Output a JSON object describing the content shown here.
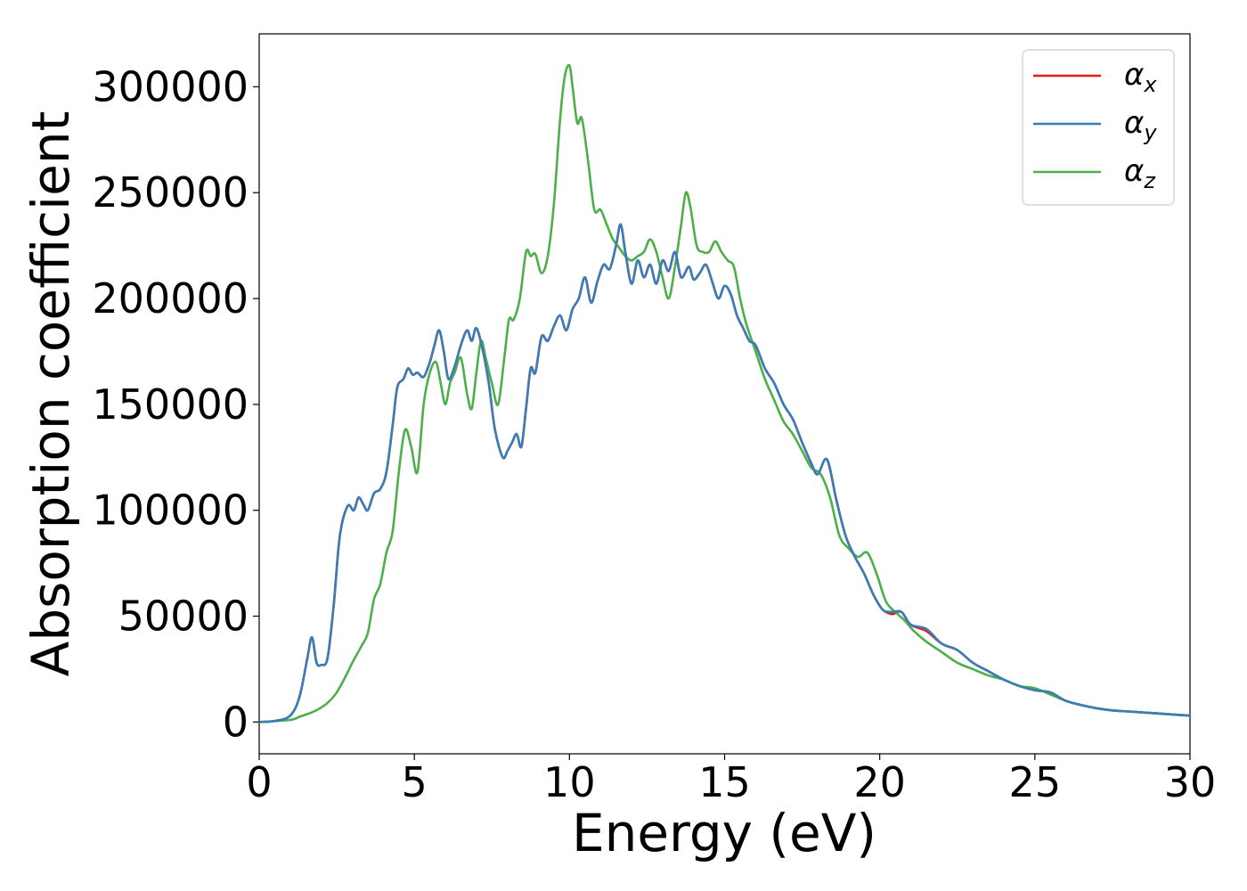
{
  "chart_data": {
    "type": "line",
    "title": "",
    "xlabel": "Energy (eV)",
    "ylabel": "Absorption coefficient",
    "xlim": [
      0,
      30
    ],
    "ylim": [
      -15000,
      325000
    ],
    "xticks": [
      0,
      5,
      10,
      15,
      20,
      25,
      30
    ],
    "yticks": [
      0,
      50000,
      100000,
      150000,
      200000,
      250000,
      300000
    ],
    "grid": false,
    "legend_position": "top-right",
    "series": [
      {
        "name": "αx",
        "base": "α",
        "sub": "x",
        "color": "#e41a1c",
        "x": [
          0,
          0.5,
          1.0,
          1.3,
          1.55,
          1.7,
          1.85,
          2.0,
          2.2,
          2.4,
          2.6,
          2.85,
          3.05,
          3.2,
          3.35,
          3.5,
          3.7,
          3.9,
          4.1,
          4.3,
          4.45,
          4.65,
          4.8,
          4.95,
          5.1,
          5.3,
          5.5,
          5.65,
          5.8,
          5.95,
          6.1,
          6.3,
          6.5,
          6.7,
          6.85,
          7.0,
          7.2,
          7.4,
          7.6,
          7.85,
          8.0,
          8.15,
          8.3,
          8.45,
          8.6,
          8.75,
          8.9,
          9.1,
          9.3,
          9.5,
          9.7,
          9.9,
          10.1,
          10.3,
          10.5,
          10.7,
          10.9,
          11.1,
          11.3,
          11.5,
          11.65,
          11.8,
          12.0,
          12.2,
          12.4,
          12.6,
          12.8,
          13.0,
          13.2,
          13.4,
          13.6,
          13.85,
          14.0,
          14.2,
          14.4,
          14.6,
          14.8,
          15.0,
          15.2,
          15.4,
          15.6,
          15.8,
          16.0,
          16.3,
          16.6,
          16.9,
          17.2,
          17.5,
          17.8,
          18.0,
          18.3,
          18.6,
          18.9,
          19.2,
          19.5,
          19.8,
          20.1,
          20.4,
          20.7,
          21.0,
          21.5,
          22.0,
          22.5,
          23.0,
          23.5,
          24.0,
          24.5,
          25.0,
          25.5,
          26.0,
          26.5,
          27.0,
          27.5,
          28.0,
          28.5,
          29.0,
          29.5,
          30.0
        ],
        "y": [
          0,
          500,
          3000,
          12000,
          30000,
          40000,
          28000,
          27000,
          30000,
          55000,
          88000,
          102000,
          100000,
          106000,
          103000,
          100000,
          108000,
          110000,
          118000,
          140000,
          158000,
          162000,
          167000,
          164000,
          165000,
          163000,
          170000,
          178000,
          185000,
          175000,
          162000,
          168000,
          178000,
          185000,
          180000,
          186000,
          176000,
          160000,
          138000,
          125000,
          128000,
          132000,
          136000,
          130000,
          148000,
          167000,
          165000,
          182000,
          180000,
          187000,
          192000,
          185000,
          195000,
          200000,
          210000,
          198000,
          208000,
          216000,
          214000,
          225000,
          235000,
          222000,
          207000,
          218000,
          210000,
          216000,
          207000,
          218000,
          213000,
          222000,
          210000,
          215000,
          209000,
          212000,
          216000,
          208000,
          200000,
          206000,
          202000,
          192000,
          186000,
          180000,
          178000,
          167000,
          160000,
          150000,
          143000,
          132000,
          122000,
          117000,
          124000,
          105000,
          88000,
          78000,
          70000,
          60000,
          53000,
          51000,
          52000,
          46000,
          43000,
          37000,
          34000,
          28000,
          24000,
          20000,
          17000,
          15000,
          14000,
          10000,
          8000,
          6500,
          5500,
          5000,
          4500,
          4000,
          3500,
          3000
        ]
      },
      {
        "name": "αy",
        "base": "α",
        "sub": "y",
        "color": "#377eb8",
        "x": [
          0,
          0.5,
          1.0,
          1.3,
          1.55,
          1.7,
          1.85,
          2.0,
          2.2,
          2.4,
          2.6,
          2.85,
          3.05,
          3.2,
          3.35,
          3.5,
          3.7,
          3.9,
          4.1,
          4.3,
          4.45,
          4.65,
          4.8,
          4.95,
          5.1,
          5.3,
          5.5,
          5.65,
          5.8,
          5.95,
          6.1,
          6.3,
          6.5,
          6.7,
          6.85,
          7.0,
          7.2,
          7.4,
          7.6,
          7.85,
          8.0,
          8.15,
          8.3,
          8.45,
          8.6,
          8.75,
          8.9,
          9.1,
          9.3,
          9.5,
          9.7,
          9.9,
          10.1,
          10.3,
          10.5,
          10.7,
          10.9,
          11.1,
          11.3,
          11.5,
          11.65,
          11.8,
          12.0,
          12.2,
          12.4,
          12.6,
          12.8,
          13.0,
          13.2,
          13.4,
          13.6,
          13.85,
          14.0,
          14.2,
          14.4,
          14.6,
          14.8,
          15.0,
          15.2,
          15.4,
          15.6,
          15.8,
          16.0,
          16.3,
          16.6,
          16.9,
          17.2,
          17.5,
          17.8,
          18.0,
          18.3,
          18.6,
          18.9,
          19.2,
          19.5,
          19.8,
          20.1,
          20.4,
          20.7,
          21.0,
          21.5,
          22.0,
          22.5,
          23.0,
          23.5,
          24.0,
          24.5,
          25.0,
          25.5,
          26.0,
          26.5,
          27.0,
          27.5,
          28.0,
          28.5,
          29.0,
          29.5,
          30.0
        ],
        "y": [
          0,
          500,
          3000,
          12000,
          30000,
          40000,
          28000,
          27000,
          30000,
          55000,
          88000,
          102000,
          100000,
          106000,
          103000,
          100000,
          108000,
          110000,
          118000,
          140000,
          158000,
          162000,
          167000,
          164000,
          165000,
          163000,
          170000,
          178000,
          185000,
          175000,
          162000,
          168000,
          178000,
          185000,
          180000,
          186000,
          176000,
          160000,
          138000,
          125000,
          128000,
          132000,
          136000,
          130000,
          148000,
          167000,
          165000,
          182000,
          180000,
          187000,
          192000,
          185000,
          195000,
          200000,
          210000,
          198000,
          208000,
          216000,
          214000,
          225000,
          235000,
          222000,
          207000,
          218000,
          210000,
          216000,
          207000,
          218000,
          213000,
          222000,
          210000,
          215000,
          209000,
          212000,
          216000,
          208000,
          200000,
          206000,
          202000,
          192000,
          186000,
          180000,
          178000,
          167000,
          160000,
          150000,
          143000,
          132000,
          122000,
          117000,
          124000,
          105000,
          88000,
          78000,
          70000,
          60000,
          53000,
          52000,
          52000,
          46000,
          44000,
          37000,
          34000,
          28000,
          24000,
          20000,
          17000,
          15000,
          14000,
          10000,
          8000,
          6500,
          5500,
          5000,
          4500,
          4000,
          3500,
          3000
        ]
      },
      {
        "name": "αz",
        "base": "α",
        "sub": "z",
        "color": "#4daf4a",
        "x": [
          0,
          1.0,
          1.3,
          1.6,
          1.9,
          2.2,
          2.5,
          2.8,
          3.0,
          3.3,
          3.5,
          3.7,
          3.9,
          4.1,
          4.3,
          4.5,
          4.7,
          4.9,
          5.1,
          5.3,
          5.5,
          5.7,
          5.85,
          6.0,
          6.15,
          6.3,
          6.5,
          6.7,
          6.85,
          7.0,
          7.15,
          7.3,
          7.5,
          7.7,
          7.9,
          8.05,
          8.2,
          8.4,
          8.6,
          8.75,
          8.9,
          9.1,
          9.3,
          9.5,
          9.7,
          9.85,
          10.0,
          10.1,
          10.25,
          10.4,
          10.6,
          10.8,
          11.0,
          11.2,
          11.4,
          11.6,
          11.8,
          12.0,
          12.2,
          12.4,
          12.6,
          12.8,
          13.0,
          13.2,
          13.4,
          13.6,
          13.75,
          13.9,
          14.1,
          14.3,
          14.5,
          14.7,
          14.9,
          15.1,
          15.3,
          15.5,
          15.7,
          16.0,
          16.3,
          16.6,
          16.9,
          17.2,
          17.5,
          17.8,
          18.1,
          18.4,
          18.7,
          19.0,
          19.3,
          19.6,
          19.9,
          20.2,
          20.5,
          20.8,
          21.1,
          21.5,
          22.0,
          22.5,
          23.0,
          23.5,
          24.0,
          24.5,
          25.0,
          25.5,
          26.0,
          26.5,
          27.0,
          27.5,
          28.0,
          28.5,
          29.0,
          29.5,
          30.0
        ],
        "y": [
          0,
          1000,
          2500,
          4000,
          6000,
          9000,
          14000,
          22000,
          28000,
          36000,
          42000,
          58000,
          65000,
          80000,
          90000,
          118000,
          138000,
          130000,
          118000,
          150000,
          165000,
          170000,
          160000,
          150000,
          160000,
          165000,
          172000,
          155000,
          148000,
          165000,
          180000,
          172000,
          160000,
          150000,
          172000,
          190000,
          190000,
          200000,
          222000,
          220000,
          221000,
          212000,
          220000,
          245000,
          285000,
          305000,
          310000,
          300000,
          283000,
          285000,
          265000,
          242000,
          242000,
          235000,
          228000,
          224000,
          220000,
          218000,
          220000,
          222000,
          228000,
          222000,
          210000,
          200000,
          215000,
          235000,
          250000,
          243000,
          225000,
          222000,
          222000,
          227000,
          222000,
          218000,
          215000,
          200000,
          188000,
          175000,
          162000,
          152000,
          142000,
          136000,
          128000,
          120000,
          117000,
          106000,
          88000,
          82000,
          78000,
          80000,
          70000,
          57000,
          52000,
          48000,
          43000,
          38000,
          33000,
          28000,
          25000,
          22000,
          20000,
          17000,
          16000,
          13000,
          10000,
          8000,
          6500,
          5500,
          5000,
          4500,
          4000,
          3500,
          3000
        ]
      }
    ]
  }
}
